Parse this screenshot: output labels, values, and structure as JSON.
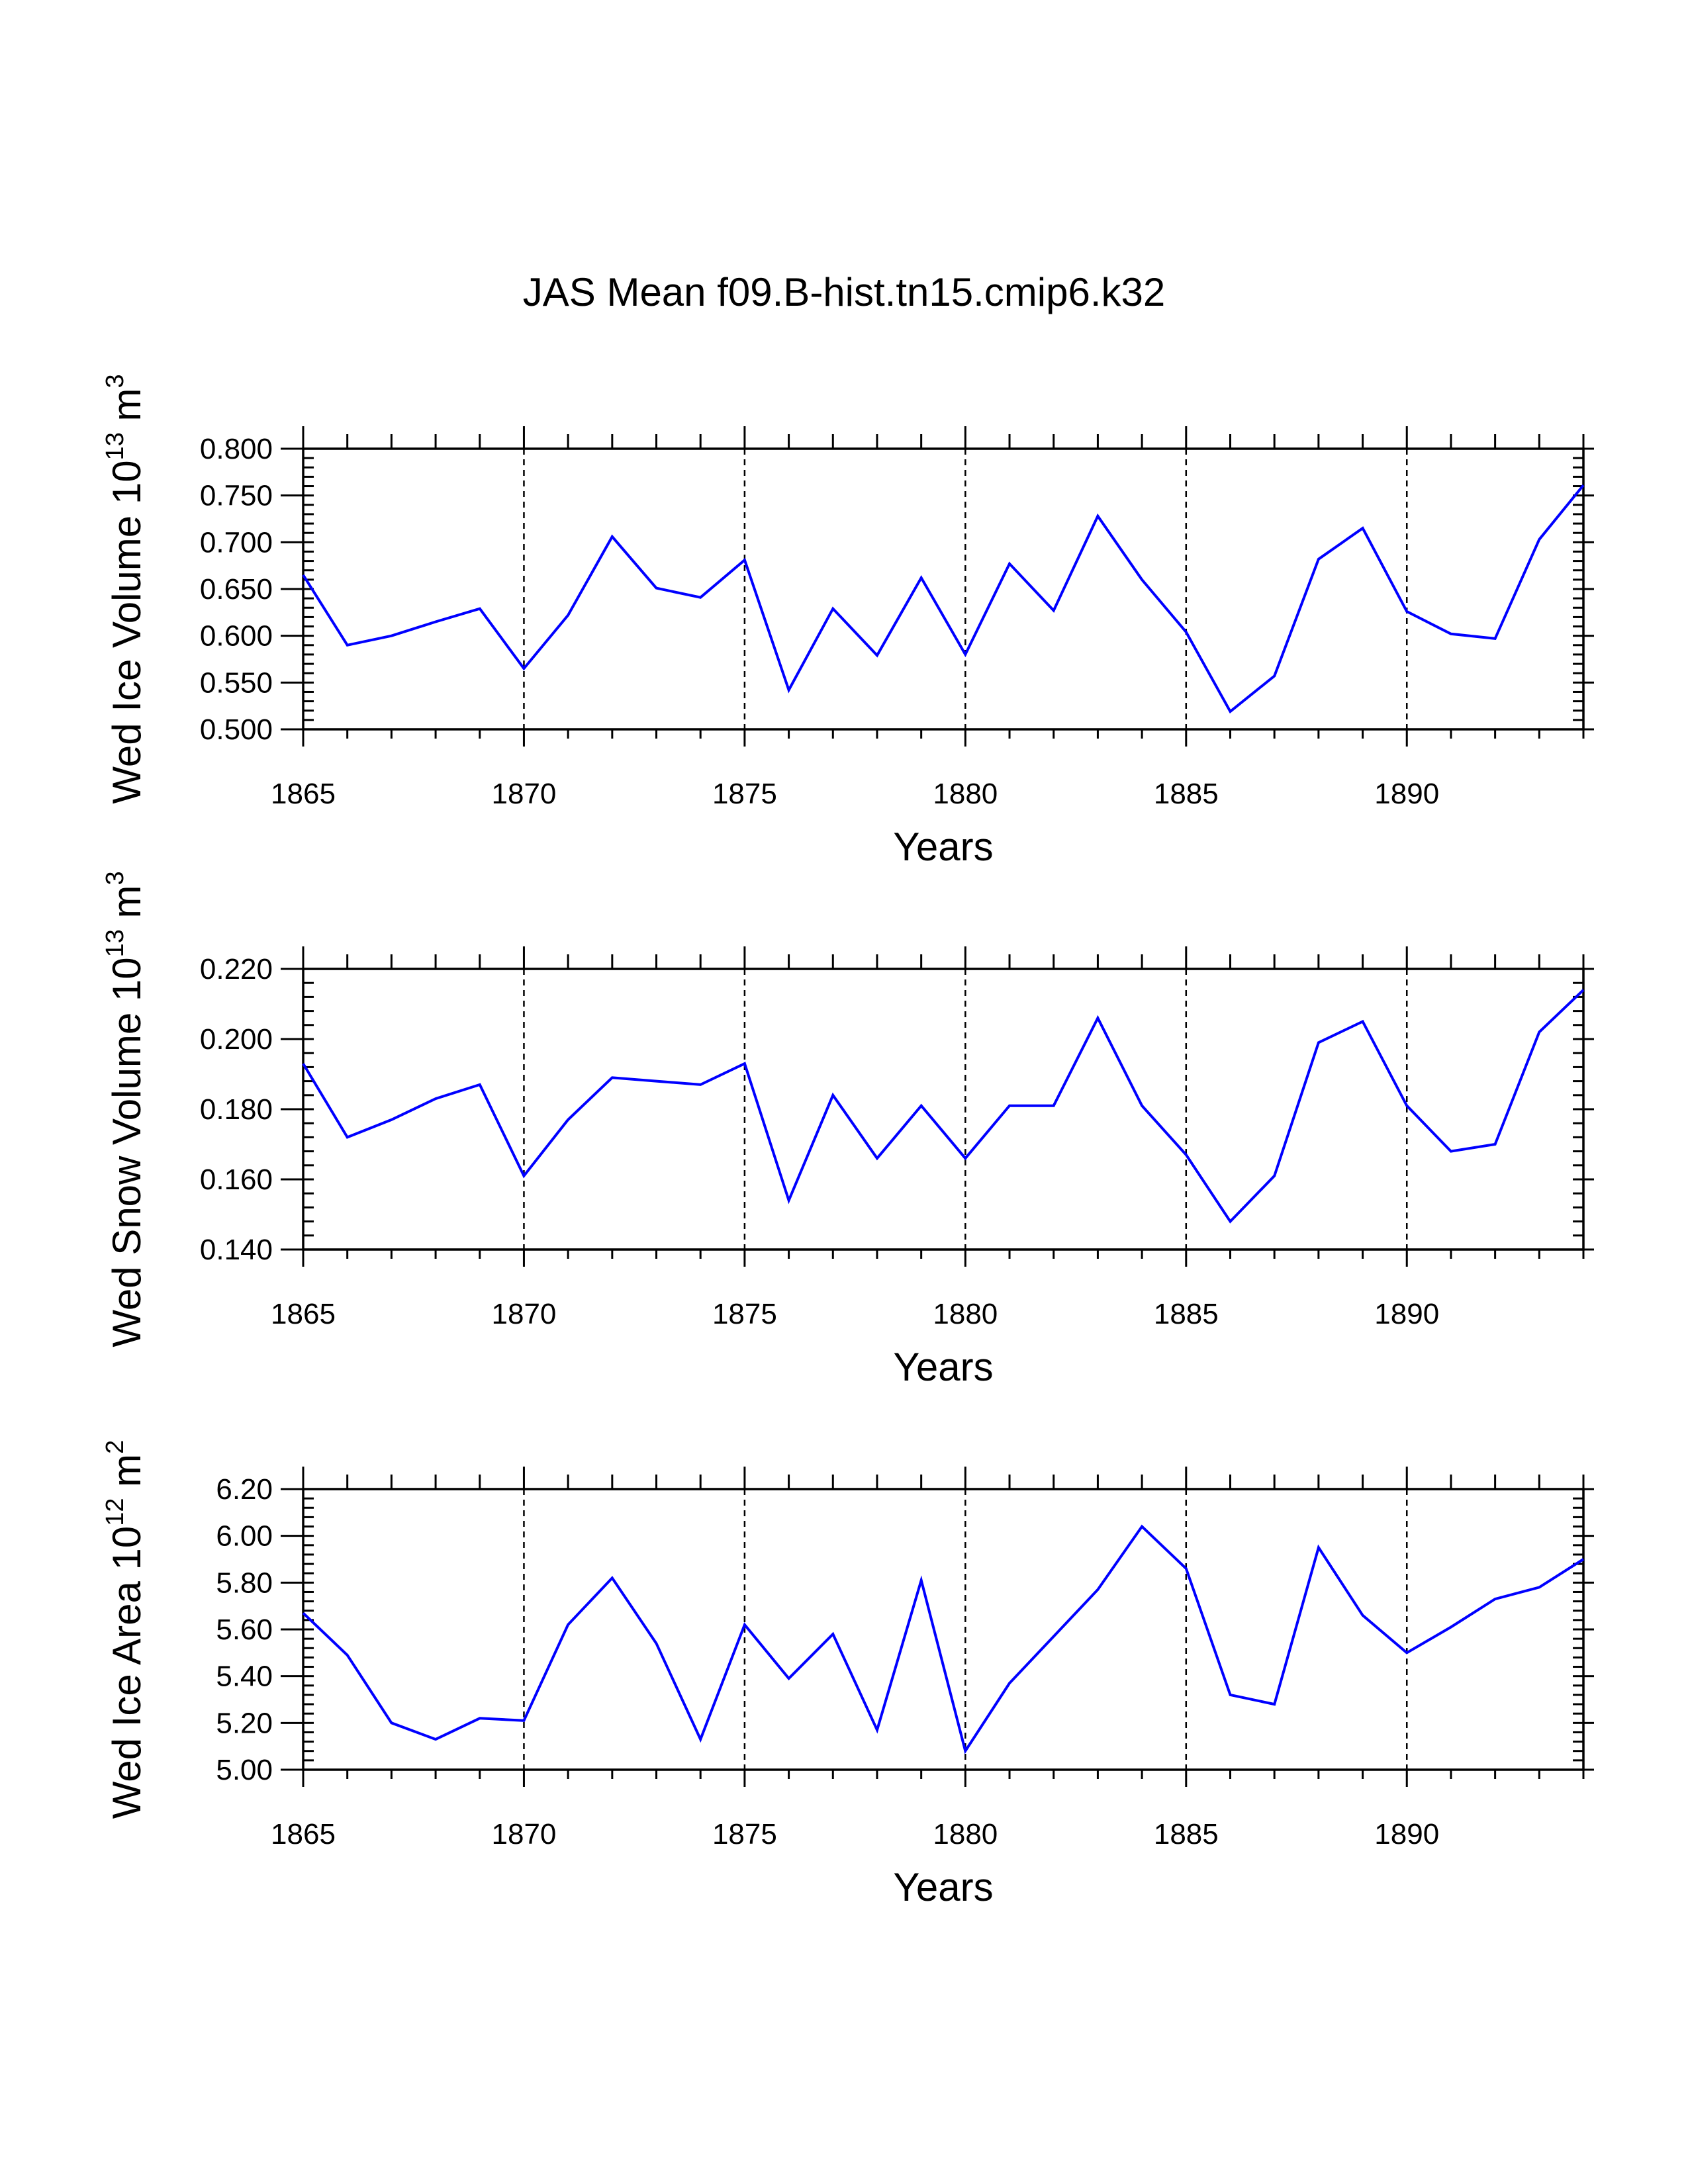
{
  "title": "JAS Mean f09.B-hist.tn15.cmip6.k32",
  "line_color": "#0000ff",
  "chart_data": [
    {
      "type": "line",
      "ylabel": "Wed Ice Volume 10",
      "ylabel_exp": "13",
      "ylabel_unit": " m",
      "ylabel_unit_exp": "3",
      "xlabel": "Years",
      "xlim": [
        1865,
        1894
      ],
      "ylim": [
        0.5,
        0.8
      ],
      "yticks": [
        0.5,
        0.55,
        0.6,
        0.65,
        0.7,
        0.75,
        0.8
      ],
      "ytick_labels": [
        "0.500",
        "0.550",
        "0.600",
        "0.650",
        "0.700",
        "0.750",
        "0.800"
      ],
      "y_minor_step": 0.01,
      "xticks": [
        1865,
        1870,
        1875,
        1880,
        1885,
        1890
      ],
      "grid_x": [
        1870,
        1875,
        1880,
        1885,
        1890
      ],
      "x": [
        1865,
        1866,
        1867,
        1868,
        1869,
        1870,
        1871,
        1872,
        1873,
        1874,
        1875,
        1876,
        1877,
        1878,
        1879,
        1880,
        1881,
        1882,
        1883,
        1884,
        1885,
        1886,
        1887,
        1888,
        1889,
        1890,
        1891,
        1892,
        1893,
        1894
      ],
      "values": [
        0.665,
        0.59,
        0.6,
        0.615,
        0.629,
        0.565,
        0.622,
        0.706,
        0.651,
        0.641,
        0.681,
        0.542,
        0.629,
        0.579,
        0.662,
        0.58,
        0.677,
        0.627,
        0.728,
        0.66,
        0.604,
        0.519,
        0.557,
        0.682,
        0.715,
        0.626,
        0.602,
        0.597,
        0.703,
        0.761
      ]
    },
    {
      "type": "line",
      "ylabel": "Wed Snow Volume 10",
      "ylabel_exp": "13",
      "ylabel_unit": " m",
      "ylabel_unit_exp": "3",
      "xlabel": "Years",
      "xlim": [
        1865,
        1894
      ],
      "ylim": [
        0.14,
        0.22
      ],
      "yticks": [
        0.14,
        0.16,
        0.18,
        0.2,
        0.22
      ],
      "ytick_labels": [
        "0.140",
        "0.160",
        "0.180",
        "0.200",
        "0.220"
      ],
      "y_minor_step": 0.004,
      "xticks": [
        1865,
        1870,
        1875,
        1880,
        1885,
        1890
      ],
      "grid_x": [
        1870,
        1875,
        1880,
        1885,
        1890
      ],
      "x": [
        1865,
        1866,
        1867,
        1868,
        1869,
        1870,
        1871,
        1872,
        1873,
        1874,
        1875,
        1876,
        1877,
        1878,
        1879,
        1880,
        1881,
        1882,
        1883,
        1884,
        1885,
        1886,
        1887,
        1888,
        1889,
        1890,
        1891,
        1892,
        1893,
        1894
      ],
      "values": [
        0.193,
        0.172,
        0.177,
        0.183,
        0.187,
        0.161,
        0.177,
        0.189,
        0.188,
        0.187,
        0.193,
        0.154,
        0.184,
        0.166,
        0.181,
        0.166,
        0.181,
        0.181,
        0.206,
        0.181,
        0.167,
        0.148,
        0.161,
        0.199,
        0.205,
        0.181,
        0.168,
        0.17,
        0.202,
        0.214
      ]
    },
    {
      "type": "line",
      "ylabel": "Wed Ice Area 10",
      "ylabel_exp": "12",
      "ylabel_unit": " m",
      "ylabel_unit_exp": "2",
      "xlabel": "Years",
      "xlim": [
        1865,
        1894
      ],
      "ylim": [
        5.0,
        6.2
      ],
      "yticks": [
        5.0,
        5.2,
        5.4,
        5.6,
        5.8,
        6.0,
        6.2
      ],
      "ytick_labels": [
        "5.00",
        "5.20",
        "5.40",
        "5.60",
        "5.80",
        "6.00",
        "6.20"
      ],
      "y_minor_step": 0.04,
      "xticks": [
        1865,
        1870,
        1875,
        1880,
        1885,
        1890
      ],
      "grid_x": [
        1870,
        1875,
        1880,
        1885,
        1890
      ],
      "x": [
        1865,
        1866,
        1867,
        1868,
        1869,
        1870,
        1871,
        1872,
        1873,
        1874,
        1875,
        1876,
        1877,
        1878,
        1879,
        1880,
        1881,
        1882,
        1883,
        1884,
        1885,
        1886,
        1887,
        1888,
        1889,
        1890,
        1891,
        1892,
        1893,
        1894
      ],
      "values": [
        5.67,
        5.49,
        5.2,
        5.13,
        5.22,
        5.21,
        5.62,
        5.82,
        5.54,
        5.13,
        5.62,
        5.39,
        5.58,
        5.17,
        5.81,
        5.08,
        5.37,
        5.57,
        5.77,
        6.04,
        5.86,
        5.32,
        5.28,
        5.95,
        5.66,
        5.5,
        5.61,
        5.73,
        5.78,
        5.9
      ]
    }
  ]
}
